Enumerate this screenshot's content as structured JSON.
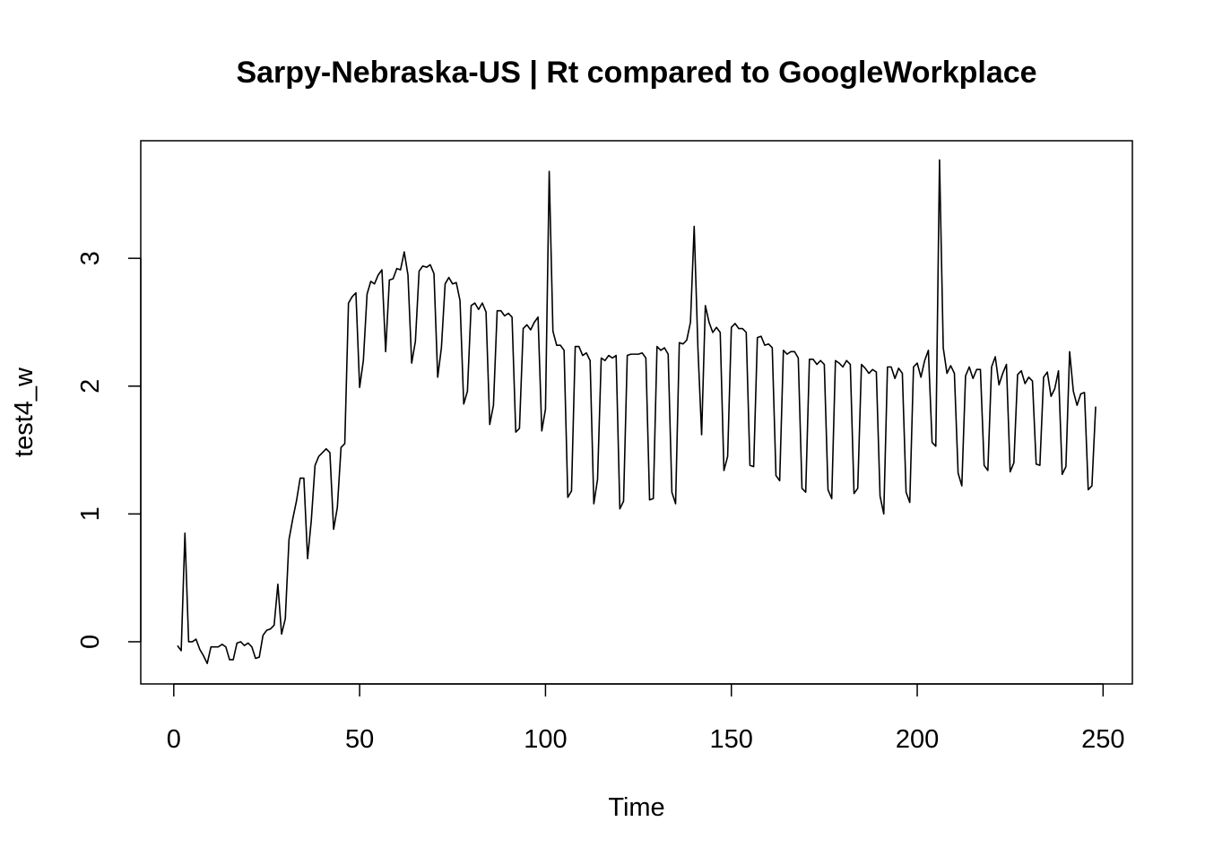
{
  "chart_data": {
    "type": "line",
    "title": "Sarpy-Nebraska-US | Rt compared to GoogleWorkplace",
    "x_label": "Time",
    "y_label": "test4_w",
    "x": [
      1,
      2,
      3,
      4,
      5,
      6,
      7,
      8,
      9,
      10,
      11,
      12,
      13,
      14,
      15,
      16,
      17,
      18,
      19,
      20,
      21,
      22,
      23,
      24,
      25,
      26,
      27,
      28,
      29,
      30,
      31,
      32,
      33,
      34,
      35,
      36,
      37,
      38,
      39,
      40,
      41,
      42,
      43,
      44,
      45,
      46,
      47,
      48,
      49,
      50,
      51,
      52,
      53,
      54,
      55,
      56,
      57,
      58,
      59,
      60,
      61,
      62,
      63,
      64,
      65,
      66,
      67,
      68,
      69,
      70,
      71,
      72,
      73,
      74,
      75,
      76,
      77,
      78,
      79,
      80,
      81,
      82,
      83,
      84,
      85,
      86,
      87,
      88,
      89,
      90,
      91,
      92,
      93,
      94,
      95,
      96,
      97,
      98,
      99,
      100,
      101,
      102,
      103,
      104,
      105,
      106,
      107,
      108,
      109,
      110,
      111,
      112,
      113,
      114,
      115,
      116,
      117,
      118,
      119,
      120,
      121,
      122,
      123,
      124,
      125,
      126,
      127,
      128,
      129,
      130,
      131,
      132,
      133,
      134,
      135,
      136,
      137,
      138,
      139,
      140,
      141,
      142,
      143,
      144,
      145,
      146,
      147,
      148,
      149,
      150,
      151,
      152,
      153,
      154,
      155,
      156,
      157,
      158,
      159,
      160,
      161,
      162,
      163,
      164,
      165,
      166,
      167,
      168,
      169,
      170,
      171,
      172,
      173,
      174,
      175,
      176,
      177,
      178,
      179,
      180,
      181,
      182,
      183,
      184,
      185,
      186,
      187,
      188,
      189,
      190,
      191,
      192,
      193,
      194,
      195,
      196,
      197,
      198,
      199,
      200,
      201,
      202,
      203,
      204,
      205,
      206,
      207,
      208,
      209,
      210,
      211,
      212,
      213,
      214,
      215,
      216,
      217,
      218,
      219,
      220,
      221,
      222,
      223,
      224,
      225,
      226,
      227,
      228,
      229,
      230,
      231,
      232,
      233,
      234,
      235,
      236,
      237,
      238,
      239,
      240,
      241,
      242,
      243,
      244,
      245,
      246,
      247,
      248
    ],
    "series": [
      {
        "color": "#000000",
        "values": [
          -0.03,
          -0.07,
          0.85,
          0.0,
          0.0,
          0.02,
          -0.06,
          -0.11,
          -0.17,
          -0.04,
          -0.04,
          -0.04,
          -0.02,
          -0.04,
          -0.14,
          -0.14,
          -0.01,
          0.0,
          -0.03,
          -0.01,
          -0.04,
          -0.13,
          -0.12,
          0.05,
          0.09,
          0.1,
          0.13,
          0.45,
          0.06,
          0.18,
          0.8,
          0.96,
          1.1,
          1.28,
          1.28,
          0.65,
          0.95,
          1.38,
          1.45,
          1.48,
          1.51,
          1.48,
          0.88,
          1.05,
          1.52,
          1.55,
          2.65,
          2.7,
          2.73,
          1.99,
          2.2,
          2.72,
          2.82,
          2.8,
          2.87,
          2.91,
          2.27,
          2.83,
          2.84,
          2.92,
          2.91,
          3.05,
          2.87,
          2.18,
          2.35,
          2.9,
          2.94,
          2.93,
          2.95,
          2.88,
          2.07,
          2.3,
          2.8,
          2.85,
          2.8,
          2.81,
          2.67,
          1.86,
          1.96,
          2.63,
          2.65,
          2.6,
          2.65,
          2.58,
          1.7,
          1.85,
          2.59,
          2.59,
          2.55,
          2.57,
          2.54,
          1.64,
          1.67,
          2.45,
          2.48,
          2.44,
          2.5,
          2.54,
          1.65,
          1.82,
          3.68,
          2.43,
          2.32,
          2.32,
          2.28,
          1.13,
          1.18,
          2.31,
          2.31,
          2.24,
          2.26,
          2.2,
          1.08,
          1.27,
          2.22,
          2.2,
          2.24,
          2.22,
          2.24,
          1.04,
          1.1,
          2.24,
          2.25,
          2.25,
          2.25,
          2.26,
          2.22,
          1.11,
          1.12,
          2.31,
          2.28,
          2.3,
          2.25,
          1.17,
          1.08,
          2.34,
          2.33,
          2.36,
          2.5,
          3.25,
          2.3,
          1.62,
          2.63,
          2.5,
          2.42,
          2.46,
          2.42,
          1.34,
          1.45,
          2.46,
          2.49,
          2.45,
          2.45,
          2.42,
          1.38,
          1.37,
          2.38,
          2.39,
          2.32,
          2.33,
          2.3,
          1.3,
          1.26,
          2.28,
          2.25,
          2.27,
          2.27,
          2.22,
          1.2,
          1.17,
          2.21,
          2.21,
          2.17,
          2.2,
          2.17,
          1.19,
          1.12,
          2.2,
          2.18,
          2.15,
          2.2,
          2.17,
          1.16,
          1.2,
          2.17,
          2.14,
          2.1,
          2.13,
          2.11,
          1.14,
          1.0,
          2.15,
          2.15,
          2.06,
          2.14,
          2.1,
          1.17,
          1.09,
          2.15,
          2.18,
          2.07,
          2.2,
          2.28,
          1.56,
          1.53,
          3.77,
          2.3,
          2.1,
          2.16,
          2.1,
          1.32,
          1.22,
          2.08,
          2.15,
          2.06,
          2.13,
          2.13,
          1.38,
          1.34,
          2.15,
          2.23,
          2.01,
          2.1,
          2.17,
          1.33,
          1.4,
          2.09,
          2.12,
          2.02,
          2.07,
          2.04,
          1.39,
          1.38,
          2.07,
          2.11,
          1.92,
          1.98,
          2.12,
          1.31,
          1.37,
          2.27,
          1.96,
          1.85,
          1.94,
          1.95,
          1.19,
          1.22,
          1.84
        ]
      }
    ],
    "xlim": [
      -8.88,
      257.88
    ],
    "xticks": [
      0,
      50,
      100,
      150,
      200,
      250
    ],
    "ylim": [
      -0.33,
      3.92
    ],
    "yticks": [
      0,
      1,
      2,
      3
    ]
  }
}
